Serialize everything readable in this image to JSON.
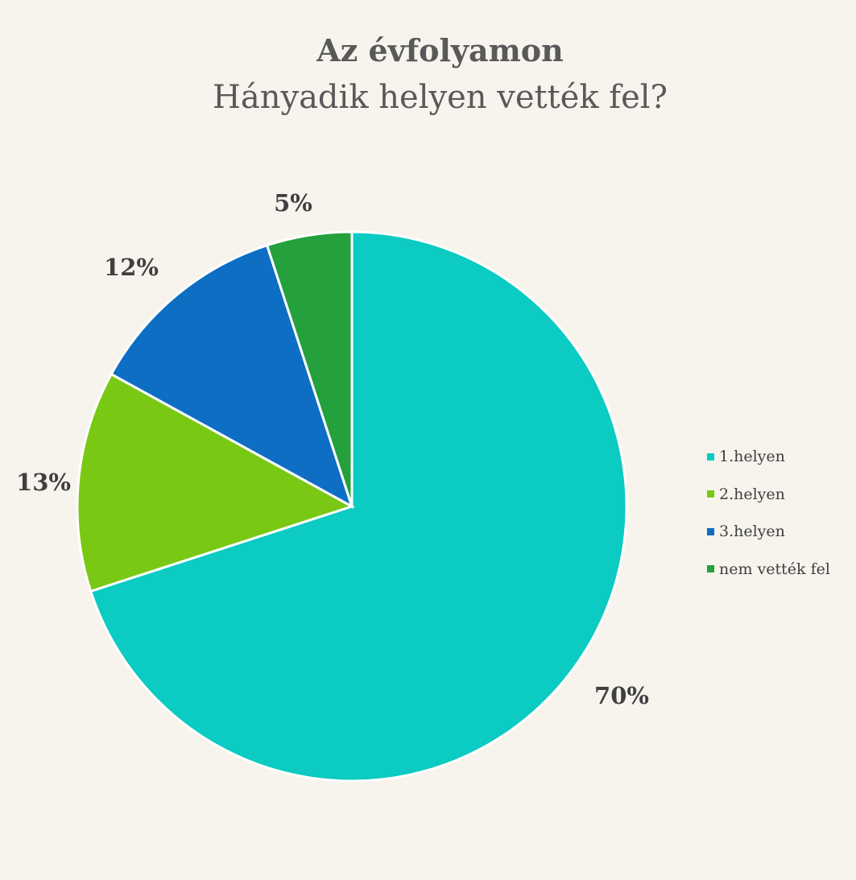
{
  "chart_data": {
    "type": "pie",
    "title": "Az évfolyamon",
    "subtitle": "Hányadik helyen vették fel?",
    "slices": [
      {
        "label": "1.helyen",
        "value": 70,
        "data_label": "70%",
        "color": "#0bcbc2"
      },
      {
        "label": "2.helyen",
        "value": 13,
        "data_label": "13%",
        "color": "#79c814"
      },
      {
        "label": "3.helyen",
        "value": 12,
        "data_label": "12%",
        "color": "#0d6ec4"
      },
      {
        "label": "nem vették fel",
        "value": 5,
        "data_label": "5%",
        "color": "#24a03c"
      }
    ],
    "start_angle_deg": 0,
    "direction": "clockwise",
    "legend_position": "right"
  }
}
